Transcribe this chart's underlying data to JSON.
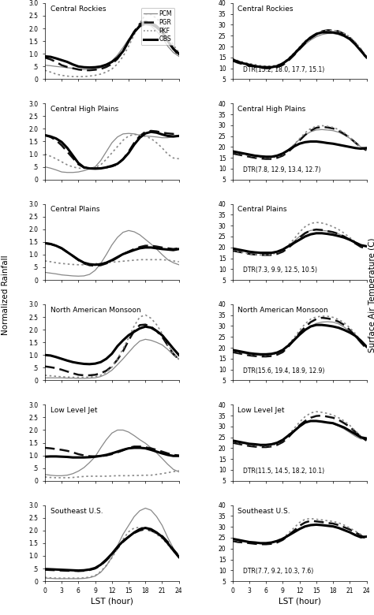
{
  "regions": [
    "Central Rockies",
    "Central High Plains",
    "Central Plains",
    "North American Monsoon",
    "Low Level Jet",
    "Southeast U.S."
  ],
  "hours": [
    0,
    1,
    2,
    3,
    4,
    5,
    6,
    7,
    8,
    9,
    10,
    11,
    12,
    13,
    14,
    15,
    16,
    17,
    18,
    19,
    20,
    21,
    22,
    23,
    24
  ],
  "dtr_labels": [
    "DTR(15.2, 18.0, 17.7, 15.1)",
    "DTR(7.8, 12.9, 13.4, 12.7)",
    "DTR(7.3, 9.9, 12.5, 10.5)",
    "DTR(15.6, 19.4, 18.9, 12.9)",
    "DTR(11.5, 14.5, 18.2, 10.1)",
    "DTR(7.7, 9.2, 10.3, 7.6)"
  ],
  "rain_data": {
    "Central Rockies": {
      "PCM": [
        0.55,
        0.53,
        0.5,
        0.48,
        0.45,
        0.43,
        0.4,
        0.38,
        0.38,
        0.4,
        0.45,
        0.55,
        0.72,
        0.95,
        1.25,
        1.58,
        1.85,
        2.05,
        2.15,
        2.1,
        1.9,
        1.65,
        1.3,
        1.05,
        0.9
      ],
      "PGR": [
        0.85,
        0.78,
        0.68,
        0.55,
        0.48,
        0.43,
        0.38,
        0.35,
        0.35,
        0.37,
        0.4,
        0.48,
        0.6,
        0.8,
        1.1,
        1.5,
        1.88,
        2.18,
        2.28,
        2.25,
        2.1,
        1.9,
        1.55,
        1.2,
        0.92
      ],
      "PKF": [
        0.35,
        0.28,
        0.2,
        0.15,
        0.12,
        0.1,
        0.1,
        0.1,
        0.12,
        0.15,
        0.2,
        0.28,
        0.4,
        0.6,
        0.9,
        1.3,
        1.75,
        2.2,
        2.55,
        2.55,
        2.4,
        2.15,
        1.75,
        1.35,
        1.05
      ],
      "OBS": [
        0.9,
        0.88,
        0.82,
        0.75,
        0.68,
        0.58,
        0.5,
        0.47,
        0.46,
        0.47,
        0.5,
        0.57,
        0.68,
        0.85,
        1.1,
        1.5,
        1.85,
        2.1,
        2.2,
        2.18,
        2.05,
        1.85,
        1.5,
        1.2,
        1.0
      ]
    },
    "Central High Plains": {
      "PCM": [
        0.5,
        0.45,
        0.38,
        0.3,
        0.28,
        0.28,
        0.3,
        0.35,
        0.42,
        0.5,
        0.75,
        1.1,
        1.45,
        1.68,
        1.8,
        1.82,
        1.8,
        1.75,
        1.72,
        1.7,
        1.68,
        1.65,
        1.65,
        1.68,
        1.7
      ],
      "PGR": [
        1.75,
        1.68,
        1.55,
        1.35,
        1.1,
        0.85,
        0.6,
        0.48,
        0.45,
        0.44,
        0.45,
        0.48,
        0.52,
        0.6,
        0.8,
        1.1,
        1.45,
        1.72,
        1.88,
        1.92,
        1.9,
        1.85,
        1.82,
        1.8,
        1.82
      ],
      "PKF": [
        1.0,
        0.92,
        0.82,
        0.7,
        0.58,
        0.5,
        0.45,
        0.44,
        0.45,
        0.48,
        0.58,
        0.8,
        1.05,
        1.3,
        1.55,
        1.72,
        1.78,
        1.76,
        1.7,
        1.62,
        1.45,
        1.25,
        1.0,
        0.85,
        0.82
      ],
      "OBS": [
        1.75,
        1.7,
        1.62,
        1.48,
        1.25,
        0.95,
        0.65,
        0.48,
        0.44,
        0.43,
        0.44,
        0.48,
        0.54,
        0.62,
        0.8,
        1.05,
        1.38,
        1.65,
        1.82,
        1.88,
        1.85,
        1.78,
        1.72,
        1.7,
        1.72
      ]
    },
    "Central Plains": {
      "PCM": [
        0.3,
        0.27,
        0.24,
        0.2,
        0.18,
        0.16,
        0.15,
        0.16,
        0.22,
        0.38,
        0.65,
        1.0,
        1.38,
        1.68,
        1.88,
        1.95,
        1.9,
        1.78,
        1.6,
        1.42,
        1.22,
        1.0,
        0.8,
        0.68,
        0.6
      ],
      "PGR": [
        1.45,
        1.42,
        1.35,
        1.25,
        1.1,
        0.95,
        0.78,
        0.65,
        0.58,
        0.56,
        0.58,
        0.65,
        0.75,
        0.88,
        1.02,
        1.12,
        1.22,
        1.3,
        1.35,
        1.35,
        1.32,
        1.28,
        1.25,
        1.22,
        1.25
      ],
      "PKF": [
        0.75,
        0.72,
        0.68,
        0.65,
        0.63,
        0.61,
        0.6,
        0.6,
        0.62,
        0.64,
        0.66,
        0.68,
        0.7,
        0.72,
        0.74,
        0.76,
        0.78,
        0.8,
        0.8,
        0.8,
        0.8,
        0.8,
        0.78,
        0.75,
        0.72
      ],
      "OBS": [
        1.45,
        1.42,
        1.35,
        1.25,
        1.1,
        0.95,
        0.8,
        0.68,
        0.62,
        0.6,
        0.62,
        0.68,
        0.78,
        0.9,
        1.02,
        1.1,
        1.18,
        1.25,
        1.28,
        1.28,
        1.25,
        1.22,
        1.2,
        1.18,
        1.22
      ]
    },
    "North American Monsoon": {
      "PCM": [
        0.1,
        0.1,
        0.1,
        0.1,
        0.09,
        0.09,
        0.08,
        0.08,
        0.09,
        0.1,
        0.15,
        0.25,
        0.4,
        0.62,
        0.85,
        1.1,
        1.35,
        1.55,
        1.62,
        1.58,
        1.5,
        1.4,
        1.22,
        1.0,
        0.85
      ],
      "PGR": [
        0.55,
        0.52,
        0.48,
        0.42,
        0.35,
        0.28,
        0.22,
        0.2,
        0.2,
        0.22,
        0.28,
        0.38,
        0.55,
        0.82,
        1.15,
        1.58,
        1.95,
        2.18,
        2.2,
        2.12,
        1.95,
        1.72,
        1.38,
        1.05,
        0.82
      ],
      "PKF": [
        0.2,
        0.18,
        0.16,
        0.14,
        0.13,
        0.12,
        0.12,
        0.12,
        0.13,
        0.15,
        0.2,
        0.32,
        0.52,
        0.85,
        1.25,
        1.68,
        2.15,
        2.5,
        2.58,
        2.45,
        2.2,
        1.85,
        1.42,
        1.05,
        0.82
      ],
      "OBS": [
        1.0,
        0.98,
        0.92,
        0.85,
        0.78,
        0.72,
        0.68,
        0.65,
        0.64,
        0.66,
        0.72,
        0.85,
        1.05,
        1.35,
        1.58,
        1.78,
        1.92,
        2.05,
        2.12,
        2.08,
        1.95,
        1.78,
        1.52,
        1.25,
        1.0
      ]
    },
    "Low Level Jet": {
      "PCM": [
        0.25,
        0.22,
        0.2,
        0.2,
        0.22,
        0.28,
        0.38,
        0.52,
        0.72,
        0.95,
        1.3,
        1.62,
        1.88,
        2.0,
        2.0,
        1.92,
        1.78,
        1.62,
        1.48,
        1.3,
        1.1,
        0.88,
        0.65,
        0.45,
        0.35
      ],
      "PGR": [
        1.3,
        1.28,
        1.25,
        1.22,
        1.18,
        1.12,
        1.05,
        1.0,
        0.97,
        0.96,
        0.97,
        1.0,
        1.05,
        1.12,
        1.2,
        1.3,
        1.35,
        1.35,
        1.32,
        1.28,
        1.22,
        1.15,
        1.08,
        1.02,
        1.0
      ],
      "PKF": [
        0.15,
        0.13,
        0.12,
        0.12,
        0.12,
        0.13,
        0.15,
        0.17,
        0.18,
        0.18,
        0.18,
        0.18,
        0.19,
        0.2,
        0.2,
        0.2,
        0.21,
        0.21,
        0.22,
        0.22,
        0.25,
        0.28,
        0.32,
        0.36,
        0.4
      ],
      "OBS": [
        0.95,
        0.96,
        0.96,
        0.95,
        0.94,
        0.92,
        0.92,
        0.92,
        0.93,
        0.95,
        0.98,
        1.02,
        1.08,
        1.15,
        1.22,
        1.28,
        1.3,
        1.3,
        1.28,
        1.22,
        1.15,
        1.08,
        1.02,
        0.98,
        0.98
      ]
    },
    "Southeast U.S.": {
      "PCM": [
        0.12,
        0.11,
        0.1,
        0.1,
        0.1,
        0.1,
        0.1,
        0.11,
        0.14,
        0.2,
        0.35,
        0.6,
        0.95,
        1.4,
        1.85,
        2.2,
        2.55,
        2.78,
        2.88,
        2.8,
        2.55,
        2.2,
        1.72,
        1.3,
        1.0
      ],
      "PGR": [
        0.45,
        0.44,
        0.43,
        0.42,
        0.41,
        0.41,
        0.4,
        0.41,
        0.44,
        0.5,
        0.62,
        0.82,
        1.05,
        1.3,
        1.55,
        1.75,
        1.9,
        2.0,
        2.05,
        2.0,
        1.9,
        1.78,
        1.55,
        1.25,
        1.0
      ],
      "PKF": [
        0.15,
        0.13,
        0.12,
        0.12,
        0.12,
        0.12,
        0.12,
        0.13,
        0.16,
        0.22,
        0.38,
        0.62,
        0.92,
        1.28,
        1.65,
        1.95,
        2.1,
        2.12,
        2.1,
        2.0,
        1.85,
        1.68,
        1.45,
        1.18,
        0.95
      ],
      "OBS": [
        0.48,
        0.47,
        0.46,
        0.45,
        0.44,
        0.43,
        0.42,
        0.43,
        0.46,
        0.52,
        0.65,
        0.85,
        1.08,
        1.35,
        1.58,
        1.75,
        1.92,
        2.05,
        2.1,
        2.05,
        1.92,
        1.75,
        1.5,
        1.22,
        0.95
      ]
    }
  },
  "temp_data": {
    "Central Rockies": {
      "PCM": [
        14.0,
        13.2,
        12.4,
        11.8,
        11.2,
        10.8,
        10.5,
        10.5,
        11.0,
        12.0,
        13.8,
        16.0,
        18.5,
        21.0,
        23.0,
        24.5,
        25.5,
        26.0,
        26.0,
        25.5,
        24.5,
        23.0,
        21.0,
        18.0,
        15.0
      ],
      "PGR": [
        13.5,
        12.5,
        11.8,
        11.2,
        10.7,
        10.3,
        10.0,
        10.0,
        10.5,
        11.5,
        13.5,
        16.0,
        18.8,
        21.5,
        23.8,
        25.5,
        27.0,
        27.5,
        27.5,
        27.0,
        25.8,
        24.0,
        21.5,
        18.5,
        14.5
      ],
      "PKF": [
        14.5,
        13.5,
        12.8,
        12.2,
        11.7,
        11.2,
        11.0,
        11.0,
        11.5,
        12.5,
        14.5,
        17.0,
        19.8,
        22.5,
        24.5,
        26.0,
        27.0,
        27.5,
        27.5,
        27.0,
        26.0,
        24.5,
        22.0,
        19.0,
        15.5
      ],
      "OBS": [
        14.0,
        13.0,
        12.2,
        11.6,
        11.0,
        10.6,
        10.5,
        10.5,
        11.0,
        12.2,
        14.0,
        16.5,
        19.2,
        22.0,
        24.2,
        25.8,
        26.5,
        26.5,
        26.5,
        26.0,
        25.0,
        23.5,
        21.0,
        18.0,
        15.0
      ]
    },
    "Central High Plains": {
      "PCM": [
        18.0,
        17.5,
        17.0,
        16.5,
        16.2,
        15.8,
        15.5,
        15.5,
        16.0,
        17.0,
        18.8,
        21.0,
        23.5,
        25.5,
        27.0,
        27.8,
        28.0,
        27.8,
        27.5,
        26.8,
        25.5,
        24.0,
        22.0,
        20.0,
        19.5
      ],
      "PGR": [
        17.0,
        16.5,
        16.0,
        15.5,
        15.0,
        14.7,
        14.5,
        14.5,
        15.0,
        16.0,
        17.8,
        20.2,
        23.0,
        25.5,
        27.5,
        28.8,
        29.2,
        29.0,
        28.5,
        27.5,
        26.0,
        24.2,
        22.0,
        19.8,
        18.5
      ],
      "PKF": [
        17.5,
        17.0,
        16.5,
        16.0,
        15.5,
        15.2,
        15.0,
        15.0,
        15.5,
        16.5,
        18.5,
        21.0,
        23.8,
        26.5,
        28.5,
        29.5,
        29.8,
        29.5,
        29.0,
        28.0,
        26.5,
        24.5,
        22.0,
        19.8,
        19.0
      ],
      "OBS": [
        18.0,
        17.5,
        17.0,
        16.5,
        16.0,
        15.7,
        15.5,
        15.5,
        16.0,
        17.0,
        18.5,
        20.2,
        21.5,
        22.2,
        22.5,
        22.5,
        22.2,
        21.8,
        21.5,
        21.0,
        20.5,
        20.0,
        19.5,
        19.2,
        19.5
      ]
    },
    "Central Plains": {
      "PCM": [
        19.5,
        19.0,
        18.5,
        18.0,
        17.8,
        17.5,
        17.5,
        17.5,
        18.0,
        19.0,
        20.8,
        22.8,
        25.0,
        26.8,
        27.8,
        28.0,
        27.8,
        27.5,
        27.0,
        26.2,
        25.0,
        23.5,
        22.0,
        20.5,
        20.5
      ],
      "PGR": [
        18.5,
        18.0,
        17.5,
        17.0,
        16.7,
        16.5,
        16.5,
        16.5,
        17.0,
        18.0,
        19.8,
        22.0,
        24.5,
        26.5,
        27.8,
        28.2,
        28.0,
        27.5,
        27.0,
        26.2,
        25.0,
        23.5,
        21.8,
        20.2,
        19.5
      ],
      "PKF": [
        19.0,
        18.2,
        17.5,
        17.0,
        16.6,
        16.5,
        16.5,
        16.8,
        17.5,
        18.8,
        21.0,
        23.8,
        27.0,
        29.5,
        31.0,
        31.5,
        31.2,
        30.5,
        29.5,
        28.2,
        26.5,
        24.5,
        22.5,
        20.8,
        20.5
      ],
      "OBS": [
        19.5,
        19.0,
        18.5,
        18.0,
        17.7,
        17.5,
        17.5,
        17.5,
        18.0,
        19.0,
        20.5,
        22.0,
        23.5,
        25.0,
        26.0,
        26.5,
        26.5,
        26.2,
        25.8,
        25.2,
        24.5,
        23.5,
        22.2,
        21.0,
        20.5
      ]
    },
    "North American Monsoon": {
      "PCM": [
        18.5,
        18.0,
        17.5,
        17.0,
        16.7,
        16.5,
        16.5,
        16.8,
        17.5,
        18.8,
        21.0,
        23.5,
        26.0,
        28.2,
        30.0,
        31.2,
        31.8,
        32.0,
        31.8,
        31.0,
        29.5,
        27.5,
        25.0,
        22.0,
        20.5
      ],
      "PGR": [
        18.0,
        17.5,
        17.0,
        16.5,
        16.2,
        16.0,
        16.0,
        16.2,
        16.8,
        18.0,
        20.5,
        23.5,
        26.8,
        29.5,
        31.8,
        33.2,
        33.8,
        33.5,
        33.0,
        32.0,
        30.5,
        28.2,
        25.5,
        22.5,
        19.5
      ],
      "PKF": [
        18.5,
        18.0,
        17.5,
        17.0,
        16.7,
        16.5,
        16.5,
        16.8,
        17.5,
        19.0,
        21.5,
        24.5,
        28.0,
        31.0,
        33.2,
        34.2,
        34.5,
        34.5,
        34.0,
        33.0,
        31.5,
        29.2,
        26.5,
        23.2,
        20.5
      ],
      "OBS": [
        19.0,
        18.5,
        18.0,
        17.5,
        17.2,
        17.0,
        17.0,
        17.2,
        17.8,
        19.0,
        21.0,
        23.5,
        26.0,
        28.2,
        29.8,
        30.5,
        30.5,
        30.2,
        29.8,
        29.2,
        28.2,
        27.0,
        25.5,
        23.2,
        20.5
      ]
    },
    "Low Level Jet": {
      "PCM": [
        23.5,
        23.0,
        22.5,
        22.0,
        21.8,
        21.5,
        21.5,
        21.8,
        22.5,
        23.8,
        25.8,
        28.0,
        30.2,
        31.8,
        32.5,
        32.5,
        32.2,
        31.8,
        31.2,
        30.2,
        28.8,
        27.2,
        25.5,
        24.2,
        24.5
      ],
      "PGR": [
        22.5,
        22.0,
        21.5,
        21.0,
        20.7,
        20.5,
        20.5,
        20.8,
        21.5,
        22.8,
        25.0,
        27.8,
        30.5,
        32.5,
        34.0,
        34.8,
        35.0,
        34.5,
        34.0,
        33.0,
        31.5,
        29.8,
        27.5,
        25.2,
        23.5
      ],
      "PKF": [
        23.0,
        22.5,
        22.0,
        21.5,
        21.2,
        21.0,
        21.0,
        21.2,
        22.0,
        23.5,
        26.0,
        29.0,
        32.0,
        34.5,
        36.2,
        36.8,
        36.5,
        36.0,
        35.2,
        34.0,
        32.5,
        30.5,
        28.0,
        25.5,
        24.0
      ],
      "OBS": [
        23.5,
        23.0,
        22.5,
        22.0,
        21.8,
        21.5,
        21.5,
        21.8,
        22.5,
        23.8,
        25.8,
        27.8,
        30.0,
        31.8,
        32.5,
        32.5,
        32.2,
        31.8,
        31.5,
        30.5,
        29.5,
        28.0,
        26.5,
        25.0,
        24.5
      ]
    },
    "Southeast U.S.": {
      "PCM": [
        24.5,
        24.0,
        23.5,
        23.0,
        22.8,
        22.5,
        22.5,
        22.8,
        23.5,
        24.5,
        26.0,
        27.5,
        29.0,
        30.2,
        30.8,
        31.0,
        30.8,
        30.5,
        30.2,
        29.5,
        28.5,
        27.5,
        26.5,
        25.5,
        25.5
      ],
      "PGR": [
        23.5,
        23.0,
        22.8,
        22.5,
        22.2,
        22.0,
        22.0,
        22.2,
        22.8,
        24.0,
        26.0,
        28.2,
        30.5,
        32.0,
        32.8,
        32.5,
        32.2,
        31.8,
        31.5,
        30.8,
        29.8,
        28.8,
        27.5,
        26.0,
        24.5
      ],
      "PKF": [
        24.0,
        23.5,
        23.2,
        23.0,
        22.7,
        22.5,
        22.5,
        22.8,
        23.5,
        24.8,
        27.0,
        29.5,
        32.0,
        33.5,
        33.8,
        33.5,
        33.2,
        32.8,
        32.5,
        31.8,
        30.8,
        29.5,
        28.0,
        26.5,
        25.0
      ],
      "OBS": [
        24.5,
        24.0,
        23.5,
        23.0,
        22.8,
        22.5,
        22.5,
        22.8,
        23.5,
        24.5,
        26.0,
        27.5,
        29.0,
        30.2,
        30.8,
        31.0,
        30.8,
        30.5,
        30.2,
        29.5,
        28.5,
        27.5,
        26.2,
        25.2,
        25.5
      ]
    }
  },
  "xlabel": "LST (hour)",
  "ylabel_left": "Normalized Rainfall",
  "ylabel_right": "Surface Air Temperature (C)",
  "xticks": [
    0,
    3,
    6,
    9,
    12,
    15,
    18,
    21,
    24
  ]
}
